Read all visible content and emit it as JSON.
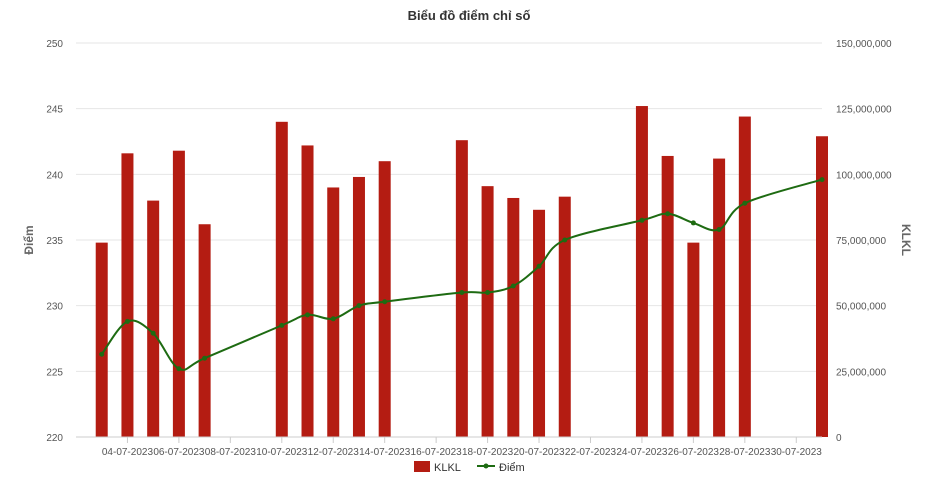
{
  "chart_data": {
    "type": "bar+line",
    "title": "Biểu đồ điểm chỉ số",
    "ylabel_left": "Điểm",
    "ylabel_right": "KLKL",
    "y_left_range": [
      220,
      250
    ],
    "y_left_ticks": [
      "220",
      "225",
      "230",
      "235",
      "240",
      "245",
      "250"
    ],
    "y_right_range": [
      0,
      150000000
    ],
    "y_right_ticks": [
      "0",
      "25,000,000",
      "50,000,000",
      "75,000,000",
      "100,000,000",
      "125,000,000",
      "150,000,000"
    ],
    "x_range": [
      "2023-07-02",
      "2023-07-31"
    ],
    "x_tick_labels": [
      "04-07-2023",
      "06-07-2023",
      "08-07-2023",
      "10-07-2023",
      "12-07-2023",
      "14-07-2023",
      "16-07-2023",
      "18-07-2023",
      "20-07-2023",
      "22-07-2023",
      "24-07-2023",
      "26-07-2023",
      "28-07-2023",
      "30-07-2023"
    ],
    "x_tick_dates": [
      "2023-07-04",
      "2023-07-06",
      "2023-07-08",
      "2023-07-10",
      "2023-07-12",
      "2023-07-14",
      "2023-07-16",
      "2023-07-18",
      "2023-07-20",
      "2023-07-22",
      "2023-07-24",
      "2023-07-26",
      "2023-07-28",
      "2023-07-30"
    ],
    "dates": [
      "2023-07-03",
      "2023-07-04",
      "2023-07-05",
      "2023-07-06",
      "2023-07-07",
      "2023-07-10",
      "2023-07-11",
      "2023-07-12",
      "2023-07-13",
      "2023-07-14",
      "2023-07-17",
      "2023-07-18",
      "2023-07-19",
      "2023-07-20",
      "2023-07-21",
      "2023-07-24",
      "2023-07-25",
      "2023-07-26",
      "2023-07-27",
      "2023-07-28",
      "2023-07-31"
    ],
    "series": [
      {
        "name": "KLKL",
        "kind": "bar",
        "axis": "right",
        "color": "#b41c12",
        "values": [
          74000000,
          108000000,
          90000000,
          109000000,
          81000000,
          120000000,
          111000000,
          95000000,
          99000000,
          105000000,
          113000000,
          95500000,
          91000000,
          86500000,
          91500000,
          126000000,
          107000000,
          74000000,
          106000000,
          122000000,
          114500000
        ]
      },
      {
        "name": "Điểm",
        "kind": "line",
        "axis": "left",
        "color": "#1e6b12",
        "values": [
          226.3,
          228.8,
          227.9,
          225.2,
          226.0,
          228.5,
          229.3,
          229.0,
          230.0,
          230.3,
          231.0,
          231.0,
          231.5,
          233.0,
          235.0,
          236.5,
          237.0,
          236.3,
          235.8,
          237.8,
          239.6
        ]
      }
    ],
    "grid": true,
    "legend_position": "bottom-center"
  }
}
